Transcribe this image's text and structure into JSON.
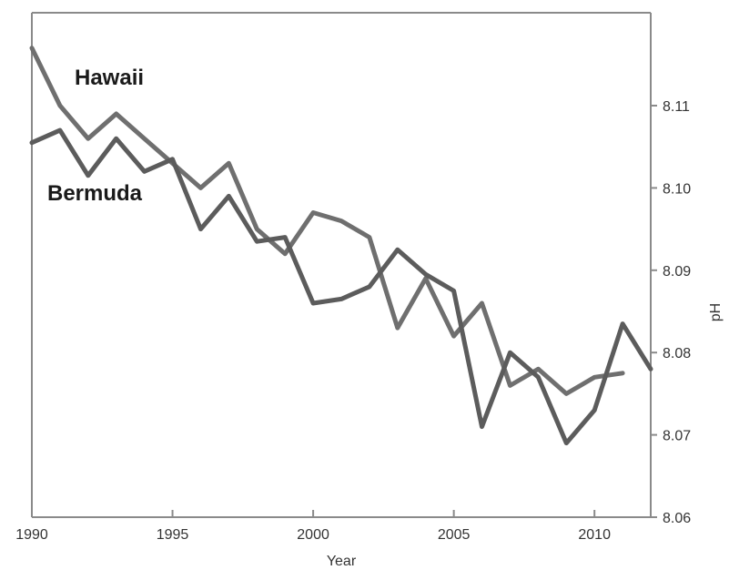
{
  "chart_data": {
    "type": "line",
    "xlabel": "Year",
    "ylabel": "pH",
    "xlim": [
      1990,
      2012
    ],
    "ylim": [
      8.06,
      8.12
    ],
    "x_ticks": [
      1990,
      1995,
      2000,
      2005,
      2010
    ],
    "y_ticks": [
      8.06,
      8.07,
      8.08,
      8.09,
      8.1,
      8.11
    ],
    "y_tick_labels": [
      "8.06",
      "8.07",
      "8.08",
      "8.09",
      "8.10",
      "8.11"
    ],
    "y_axis_side": "right",
    "grid": false,
    "series": [
      {
        "name": "Hawaii",
        "color": "#6f6f6f",
        "points": [
          [
            1990,
            8.117
          ],
          [
            1991,
            8.11
          ],
          [
            1992,
            8.106
          ],
          [
            1993,
            8.109
          ],
          [
            1994,
            8.106
          ],
          [
            1995,
            8.103
          ],
          [
            1996,
            8.1
          ],
          [
            1997,
            8.103
          ],
          [
            1998,
            8.095
          ],
          [
            1999,
            8.092
          ],
          [
            2000,
            8.097
          ],
          [
            2001,
            8.096
          ],
          [
            2002,
            8.094
          ],
          [
            2003,
            8.083
          ],
          [
            2004,
            8.089
          ],
          [
            2005,
            8.082
          ],
          [
            2006,
            8.086
          ],
          [
            2007,
            8.076
          ],
          [
            2008,
            8.078
          ],
          [
            2009,
            8.075
          ],
          [
            2010,
            8.077
          ],
          [
            2011,
            8.0775
          ]
        ]
      },
      {
        "name": "Bermuda",
        "color": "#5c5c5c",
        "points": [
          [
            1990,
            8.1055
          ],
          [
            1991,
            8.107
          ],
          [
            1992,
            8.1015
          ],
          [
            1993,
            8.106
          ],
          [
            1994,
            8.102
          ],
          [
            1995,
            8.1035
          ],
          [
            1996,
            8.095
          ],
          [
            1997,
            8.099
          ],
          [
            1998,
            8.0935
          ],
          [
            1999,
            8.094
          ],
          [
            2000,
            8.086
          ],
          [
            2001,
            8.0865
          ],
          [
            2002,
            8.088
          ],
          [
            2003,
            8.0925
          ],
          [
            2004,
            8.0895
          ],
          [
            2005,
            8.0875
          ],
          [
            2006,
            8.071
          ],
          [
            2007,
            8.08
          ],
          [
            2008,
            8.077
          ],
          [
            2009,
            8.069
          ],
          [
            2010,
            8.073
          ],
          [
            2011,
            8.0835
          ],
          [
            2012,
            8.078
          ]
        ]
      }
    ]
  }
}
